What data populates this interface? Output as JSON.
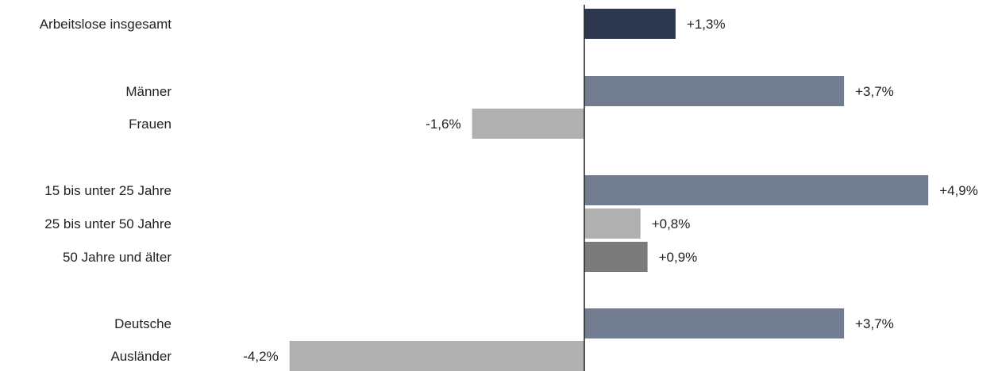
{
  "chart_data": {
    "type": "bar",
    "orientation": "horizontal",
    "title": "",
    "xlabel": "",
    "ylabel": "",
    "grid": false,
    "legend": "none",
    "xlim": [
      -4.2,
      4.9
    ],
    "value_suffix": "%",
    "decimal_separator": ",",
    "categories": [
      "Arbeitslose insgesamt",
      "Männer",
      "Frauen",
      "15 bis unter 25 Jahre",
      "25 bis unter 50 Jahre",
      "50 Jahre und älter",
      "Deutsche",
      "Ausländer"
    ],
    "values": [
      1.3,
      3.7,
      -1.6,
      4.9,
      0.8,
      0.9,
      3.7,
      -4.2
    ],
    "data_labels": [
      "+1,3%",
      "+3,7%",
      "-1,6%",
      "+4,9%",
      "+0,8%",
      "+0,9%",
      "+3,7%",
      "-4,2%"
    ],
    "colors": [
      "#2d3750",
      "#737d91",
      "#b0b0b0",
      "#737d91",
      "#b0b0b0",
      "#7b7b7b",
      "#737d91",
      "#b0b0b0"
    ],
    "axis_color": "#222222"
  }
}
